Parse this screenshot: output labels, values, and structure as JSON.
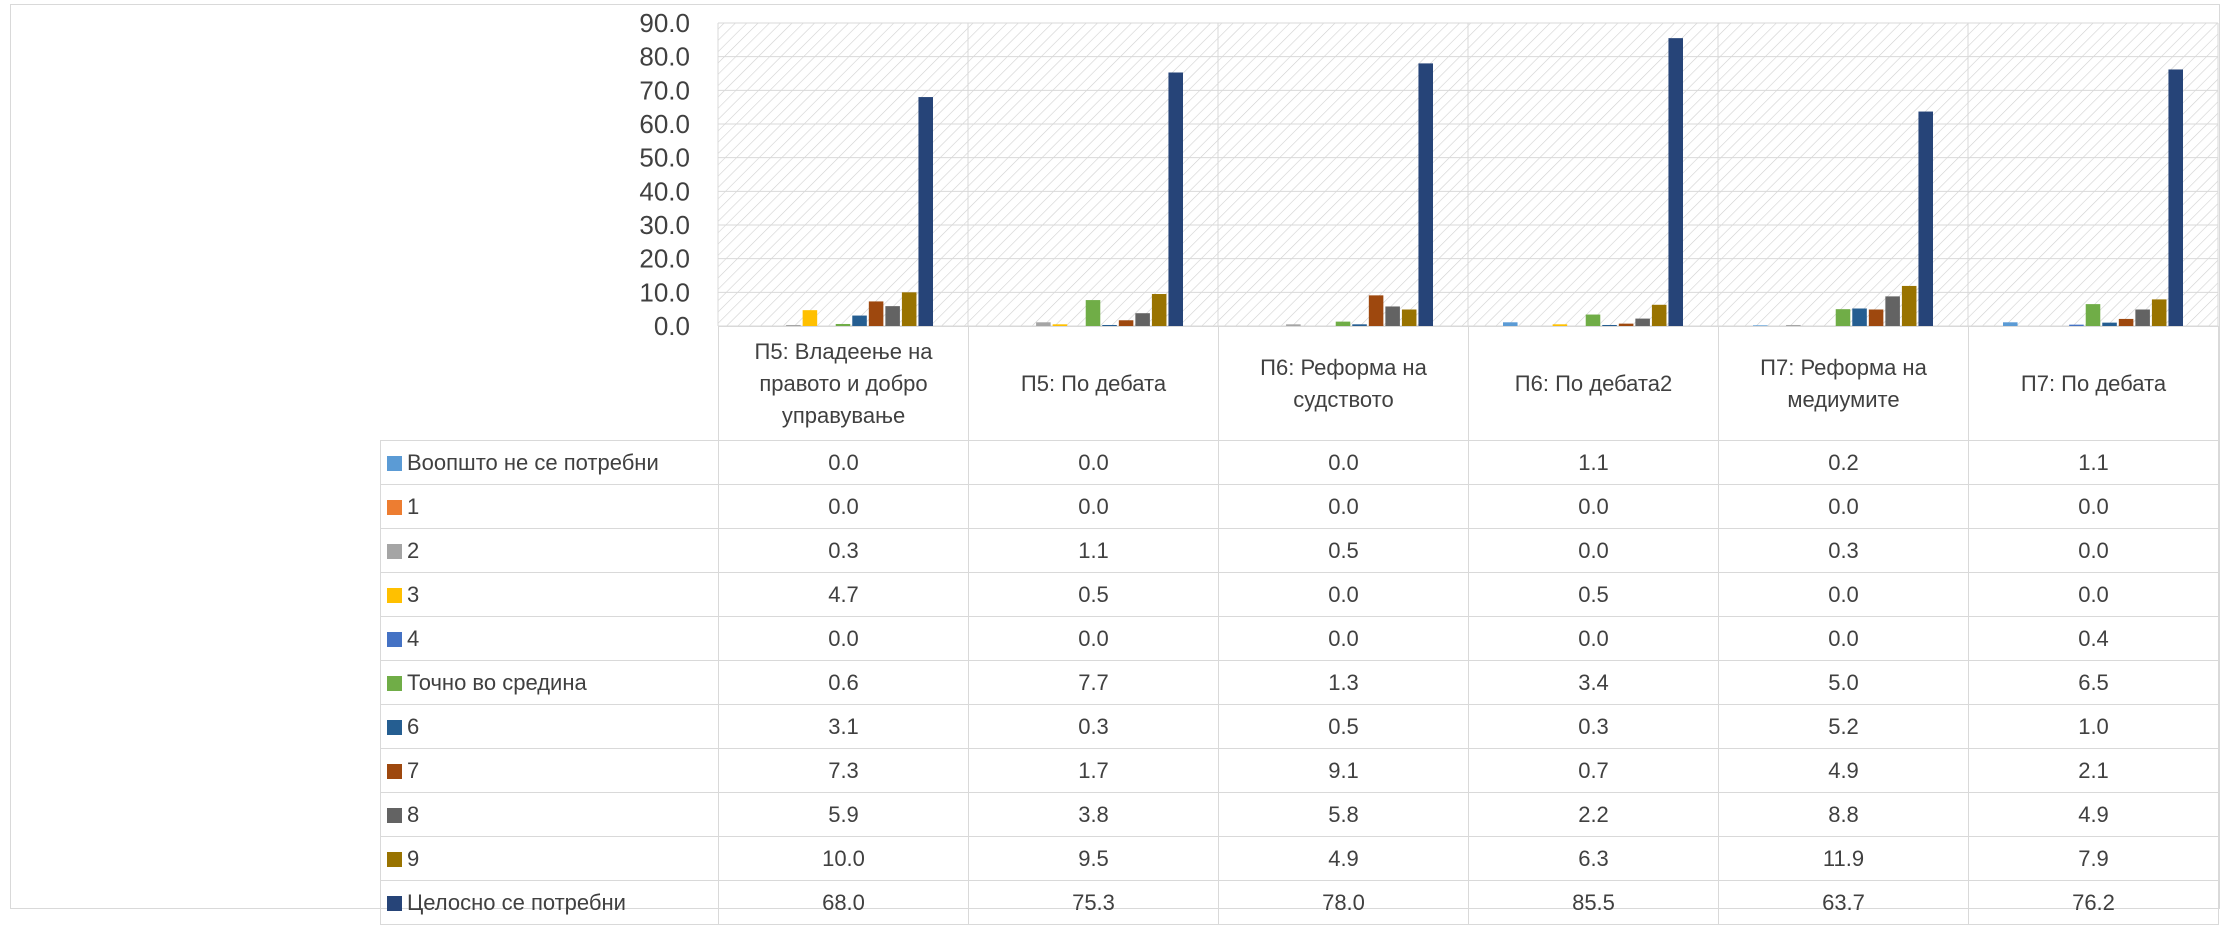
{
  "chart_data": {
    "type": "bar",
    "categories": [
      "П5: Владеење на правото и добро управување",
      "П5: По дебата",
      "П6: Реформа на судството",
      "П6: По дебата2",
      "П7: Реформа на медиумите",
      "П7: По дебата"
    ],
    "ylim": [
      0,
      90
    ],
    "yticks": [
      "0.0",
      "10.0",
      "20.0",
      "30.0",
      "40.0",
      "50.0",
      "60.0",
      "70.0",
      "80.0",
      "90.0"
    ],
    "grid": true,
    "legend": "data-table",
    "series": [
      {
        "name": "Воопшто не се потребни",
        "color": "#5B9BD5",
        "values": [
          0.0,
          0.0,
          0.0,
          1.1,
          0.2,
          1.1
        ],
        "labels": [
          "0.0",
          "0.0",
          "0.0",
          "1.1",
          "0.2",
          "1.1"
        ]
      },
      {
        "name": "1",
        "color": "#ED7D31",
        "values": [
          0.0,
          0.0,
          0.0,
          0.0,
          0.0,
          0.0
        ],
        "labels": [
          "0.0",
          "0.0",
          "0.0",
          "0.0",
          "0.0",
          "0.0"
        ]
      },
      {
        "name": "2",
        "color": "#A5A5A5",
        "values": [
          0.3,
          1.1,
          0.5,
          0.0,
          0.3,
          0.0
        ],
        "labels": [
          "0.3",
          "1.1",
          "0.5",
          "0.0",
          "0.3",
          "0.0"
        ]
      },
      {
        "name": "3",
        "color": "#FFC000",
        "values": [
          4.7,
          0.5,
          0.0,
          0.5,
          0.0,
          0.0
        ],
        "labels": [
          "4.7",
          "0.5",
          "0.0",
          "0.5",
          "0.0",
          "0.0"
        ]
      },
      {
        "name": "4",
        "color": "#4472C4",
        "values": [
          0.0,
          0.0,
          0.0,
          0.0,
          0.0,
          0.4
        ],
        "labels": [
          "0.0",
          "0.0",
          "0.0",
          "0.0",
          "0.0",
          "0.4"
        ]
      },
      {
        "name": "Точно во средина",
        "color": "#70AD47",
        "values": [
          0.6,
          7.7,
          1.3,
          3.4,
          5.0,
          6.5
        ],
        "labels": [
          "0.6",
          "7.7",
          "1.3",
          "3.4",
          "5.0",
          "6.5"
        ]
      },
      {
        "name": "6",
        "color": "#255E91",
        "values": [
          3.1,
          0.3,
          0.5,
          0.3,
          5.2,
          1.0
        ],
        "labels": [
          "3.1",
          "0.3",
          "0.5",
          "0.3",
          "5.2",
          "1.0"
        ]
      },
      {
        "name": "7",
        "color": "#9E480E",
        "values": [
          7.3,
          1.7,
          9.1,
          0.7,
          4.9,
          2.1
        ],
        "labels": [
          "7.3",
          "1.7",
          "9.1",
          "0.7",
          "4.9",
          "2.1"
        ]
      },
      {
        "name": "8",
        "color": "#636363",
        "values": [
          5.9,
          3.8,
          5.8,
          2.2,
          8.8,
          4.9
        ],
        "labels": [
          "5.9",
          "3.8",
          "5.8",
          "2.2",
          "8.8",
          "4.9"
        ]
      },
      {
        "name": "9",
        "color": "#997300",
        "values": [
          10.0,
          9.5,
          4.9,
          6.3,
          11.9,
          7.9
        ],
        "labels": [
          "10.0",
          "9.5",
          "4.9",
          "6.3",
          "11.9",
          "7.9"
        ]
      },
      {
        "name": "Целосно се потребни",
        "color": "#264478",
        "values": [
          68.0,
          75.3,
          78.0,
          85.5,
          63.7,
          76.2
        ],
        "labels": [
          "68.0",
          "75.3",
          "78.0",
          "85.5",
          "63.7",
          "76.2"
        ]
      }
    ]
  }
}
